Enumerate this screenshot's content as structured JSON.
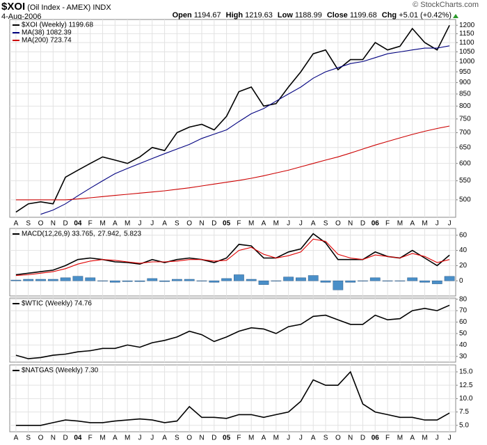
{
  "header": {
    "title": "$XOI",
    "subtitle": "(Oil Index - AMEX) INDX",
    "date": "4-Aug-2006",
    "credit": "© StockCharts.com",
    "stats": [
      {
        "label": "Open",
        "value": "1194.67"
      },
      {
        "label": "High",
        "value": "1219.63"
      },
      {
        "label": "Low",
        "value": "1188.99"
      },
      {
        "label": "Close",
        "value": "1199.68"
      },
      {
        "label": "Chg",
        "value": "+5.01 (+0.42%)"
      }
    ]
  },
  "chart_data": [
    {
      "type": "line",
      "log": true,
      "grid": true,
      "legend": "stacked",
      "categories": [
        "A",
        "S",
        "O",
        "N",
        "D",
        "04",
        "F",
        "M",
        "A",
        "M",
        "J",
        "J",
        "A",
        "S",
        "O",
        "N",
        "D",
        "05",
        "F",
        "M",
        "A",
        "M",
        "J",
        "J",
        "A",
        "S",
        "O",
        "N",
        "D",
        "06",
        "F",
        "M",
        "A",
        "M",
        "J",
        "J"
      ],
      "ylim": [
        458,
        1235
      ],
      "yticks": [
        500,
        550,
        600,
        650,
        700,
        750,
        800,
        850,
        900,
        950,
        1000,
        1050,
        1100,
        1150,
        1200
      ],
      "series": [
        {
          "name": "$XOI (Weekly) 1199.68",
          "color": "#000000",
          "values": [
            470,
            490,
            495,
            490,
            560,
            580,
            600,
            620,
            610,
            600,
            620,
            650,
            640,
            700,
            720,
            730,
            710,
            760,
            860,
            880,
            800,
            810,
            880,
            950,
            1040,
            1060,
            960,
            1010,
            1010,
            1100,
            1060,
            1080,
            1180,
            1100,
            1060,
            1199.68
          ]
        },
        {
          "name": "MA(38) 1082.39",
          "color": "#000080",
          "values": [
            null,
            null,
            465,
            475,
            490,
            510,
            530,
            550,
            570,
            585,
            600,
            615,
            630,
            645,
            660,
            680,
            695,
            710,
            740,
            770,
            790,
            820,
            850,
            880,
            920,
            950,
            970,
            990,
            1000,
            1020,
            1040,
            1050,
            1060,
            1070,
            1070,
            1082.39
          ]
        },
        {
          "name": "MA(200) 723.74",
          "color": "#cc0000",
          "values": [
            500,
            500,
            500,
            500,
            500,
            502,
            505,
            508,
            511,
            514,
            517,
            520,
            523,
            527,
            531,
            536,
            541,
            546,
            551,
            557,
            564,
            572,
            580,
            590,
            600,
            610,
            620,
            632,
            645,
            658,
            670,
            682,
            694,
            705,
            715,
            723.74
          ]
        }
      ]
    },
    {
      "type": "line",
      "grid": true,
      "legend": "inline",
      "ylim": [
        -20,
        69
      ],
      "yticks": [
        0,
        20,
        40,
        60
      ],
      "series": [
        {
          "name": "MACD(12,26,9) 33.765,",
          "color": "#000000",
          "values": [
            8,
            10,
            12,
            14,
            20,
            28,
            30,
            28,
            25,
            24,
            22,
            28,
            24,
            28,
            30,
            28,
            24,
            30,
            48,
            46,
            30,
            30,
            38,
            42,
            62,
            50,
            28,
            28,
            28,
            38,
            32,
            30,
            40,
            30,
            20,
            33.765
          ]
        },
        {
          "name": "27.942,",
          "color": "#e00000",
          "values": [
            7,
            8,
            10,
            12,
            16,
            22,
            26,
            28,
            27,
            25,
            23,
            25,
            25,
            26,
            28,
            28,
            26,
            27,
            40,
            44,
            35,
            30,
            33,
            38,
            55,
            52,
            35,
            30,
            28,
            34,
            32,
            30,
            36,
            32,
            24,
            27.942
          ]
        },
        {
          "name": "5.823",
          "color": "#4a8fc8",
          "type": "bar",
          "values": [
            1,
            2,
            2,
            2,
            4,
            6,
            4,
            0,
            -2,
            -1,
            -1,
            3,
            -1,
            2,
            2,
            0,
            -2,
            3,
            8,
            2,
            -5,
            0,
            5,
            4,
            7,
            -2,
            -12,
            -2,
            0,
            4,
            0,
            0,
            4,
            -2,
            -4,
            5.823
          ]
        }
      ]
    },
    {
      "type": "line",
      "grid": true,
      "legend": "stacked",
      "ylim": [
        25,
        81
      ],
      "yticks": [
        30,
        40,
        50,
        60,
        70,
        80
      ],
      "series": [
        {
          "name": "$WTIC (Weekly) 74.76",
          "color": "#000000",
          "values": [
            31,
            28,
            29,
            31,
            32,
            34,
            35,
            37,
            37,
            40,
            38,
            42,
            44,
            47,
            52,
            49,
            43,
            47,
            52,
            55,
            54,
            50,
            56,
            58,
            65,
            66,
            62,
            58,
            58,
            66,
            62,
            63,
            70,
            72,
            70,
            74.76
          ]
        }
      ]
    },
    {
      "type": "line",
      "grid": true,
      "legend": "stacked",
      "categories": [
        "A",
        "S",
        "O",
        "N",
        "D",
        "04",
        "F",
        "M",
        "A",
        "M",
        "J",
        "J",
        "A",
        "S",
        "O",
        "N",
        "D",
        "05",
        "F",
        "M",
        "A",
        "M",
        "J",
        "J",
        "A",
        "S",
        "O",
        "N",
        "D",
        "06",
        "F",
        "M",
        "A",
        "M",
        "J",
        "J"
      ],
      "ylim": [
        3.8,
        16.3
      ],
      "yticks": [
        {
          "value": 5,
          "label": "5.0"
        },
        {
          "value": 7.5,
          "label": "7.5"
        },
        {
          "value": 10,
          "label": "10.0"
        },
        {
          "value": 12.5,
          "label": "12.5"
        },
        {
          "value": 15,
          "label": "15.0"
        }
      ],
      "series": [
        {
          "name": "$NATGAS (Weekly) 7.30",
          "color": "#000000",
          "values": [
            5.0,
            5.0,
            5.0,
            5.5,
            6.0,
            5.8,
            5.5,
            5.5,
            5.8,
            6.0,
            6.2,
            6.0,
            5.5,
            5.8,
            8.5,
            6.5,
            6.5,
            6.3,
            7.0,
            7.0,
            6.5,
            7.0,
            7.5,
            9.5,
            13.5,
            12.5,
            12.5,
            15.0,
            9.0,
            7.5,
            7.0,
            6.5,
            6.5,
            6.0,
            6.0,
            7.3
          ]
        }
      ]
    }
  ]
}
